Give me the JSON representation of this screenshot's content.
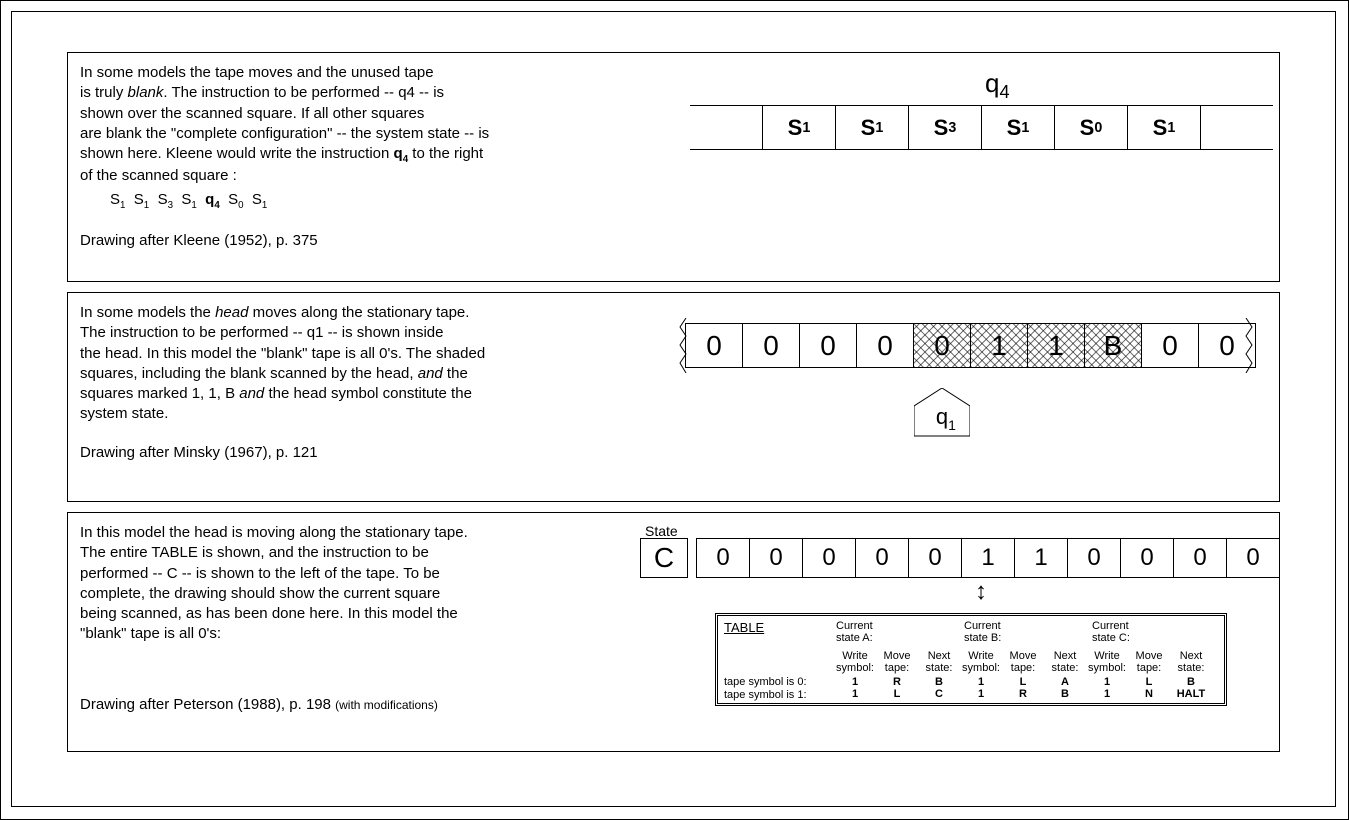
{
  "panel1": {
    "text_lines": [
      "In some models the tape moves and the unused tape",
      "is truly <span class='ital'>blank</span>. The instruction to be performed -- q4 -- is",
      "shown over the scanned square. If all other squares",
      "are blank the \"complete configuration\" -- the system state -- is",
      "shown here. Kleene would write the instruction <b>q<span class='sub'>4</span></b> to the right",
      "of the scanned square :"
    ],
    "sequence_html": "S<span class='sub'>1</span>&nbsp;&nbsp;S<span class='sub'>1</span>&nbsp;&nbsp;S<span class='sub'>3</span>&nbsp;&nbsp;S<span class='sub'>1</span>&nbsp;&nbsp;<b>q<span class='sub'>4</span></b>&nbsp;&nbsp;S<span class='sub'>0</span>&nbsp;&nbsp;S<span class='sub'>1</span>",
    "citation": "Drawing after Kleene (1952), p. 375",
    "state_label_html": "q<span class='sub' style='font-size:0.7em'>4</span>",
    "tape": [
      "",
      "S1",
      "S1",
      "S3",
      "S1",
      "S0",
      "S1",
      ""
    ]
  },
  "panel2": {
    "text_lines": [
      "In some models the <span class='ital'>head</span> moves along the stationary tape.",
      "The instruction to be performed -- q1 -- is shown inside",
      "the head. In this model the \"blank\" tape is all 0's. The shaded",
      "squares, including the blank scanned by the head, <span class='ital'>and</span> the",
      "squares marked 1, 1, B <span class='ital'>and</span> the head symbol constitute the",
      "system state."
    ],
    "citation": "Drawing after Minsky (1967), p. 121",
    "tape": [
      {
        "v": "0",
        "shaded": false
      },
      {
        "v": "0",
        "shaded": false
      },
      {
        "v": "0",
        "shaded": false
      },
      {
        "v": "0",
        "shaded": false
      },
      {
        "v": "0",
        "shaded": true
      },
      {
        "v": "1",
        "shaded": true
      },
      {
        "v": "1",
        "shaded": true
      },
      {
        "v": "B",
        "shaded": true
      },
      {
        "v": "0",
        "shaded": false
      },
      {
        "v": "0",
        "shaded": false
      }
    ],
    "head_label_html": "q<span class='sub' style='font-size:0.7em'>1</span>",
    "head_cell_index": 4
  },
  "panel3": {
    "text_lines": [
      "In this model the head is moving along the stationary tape.",
      "The entire TABLE is shown, and the instruction to be",
      "performed -- C -- is shown to the left of the tape. To be",
      "complete, the drawing should show the current square",
      "being scanned, as has been done here. In this model the",
      "\"blank\" tape is all 0's:"
    ],
    "citation_main": "Drawing after Peterson (1988), p. 198 ",
    "citation_note": "(with modifications)",
    "state_header": "State",
    "state_value": "C",
    "tape": [
      "0",
      "0",
      "0",
      "0",
      "0",
      "1",
      "1",
      "0",
      "0",
      "0",
      "0"
    ],
    "arrow_cell_index": 5,
    "table": {
      "title": "TABLE",
      "group_headers": [
        "Current state A:",
        "Current state B:",
        "Current state C:"
      ],
      "col_subheaders": [
        "Write symbol:",
        "Move tape:",
        "Next state:"
      ],
      "row_labels": [
        "tape symbol is 0:",
        "tape symbol is 1:"
      ],
      "rows": [
        [
          [
            "1",
            "R",
            "B"
          ],
          [
            "1",
            "L",
            "A"
          ],
          [
            "1",
            "L",
            "B"
          ]
        ],
        [
          [
            "1",
            "L",
            "C"
          ],
          [
            "1",
            "R",
            "B"
          ],
          [
            "1",
            "N",
            "HALT"
          ]
        ]
      ]
    }
  },
  "colors": {
    "background": "#ffffff",
    "border": "#000000",
    "text": "#000000"
  }
}
